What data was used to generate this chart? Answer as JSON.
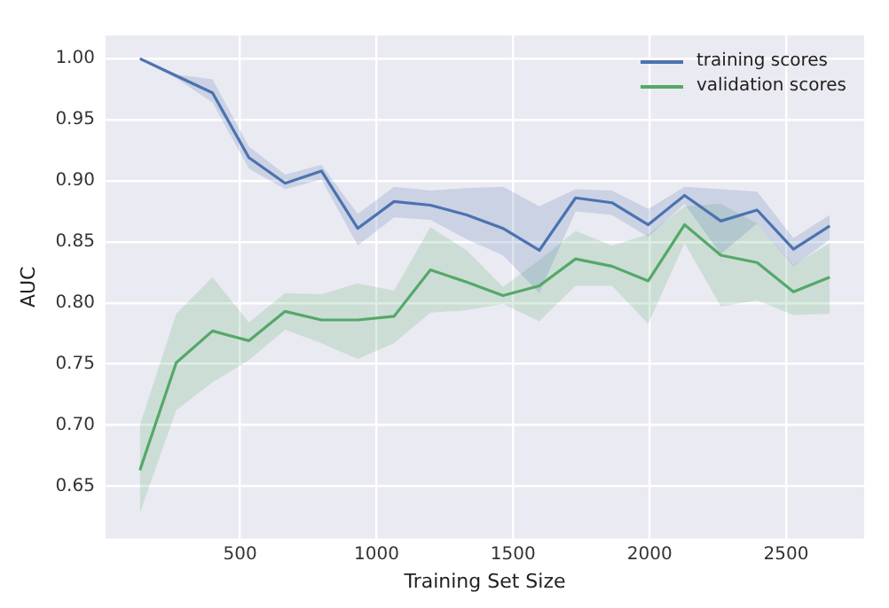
{
  "chart_data": {
    "type": "line",
    "xlabel": "Training Set Size",
    "ylabel": "AUC",
    "x": [
      133,
      266,
      399,
      532,
      665,
      798,
      931,
      1064,
      1197,
      1330,
      1463,
      1596,
      1729,
      1862,
      1995,
      2128,
      2261,
      2394,
      2527,
      2660
    ],
    "series": [
      {
        "name": "training scores",
        "color": "#4c72b0",
        "values": [
          1.0,
          0.986,
          0.972,
          0.919,
          0.898,
          0.908,
          0.861,
          0.883,
          0.88,
          0.872,
          0.861,
          0.843,
          0.886,
          0.882,
          0.864,
          0.888,
          0.867,
          0.876,
          0.844,
          0.863
        ],
        "upper": [
          1.0,
          0.987,
          0.983,
          0.928,
          0.905,
          0.913,
          0.873,
          0.895,
          0.892,
          0.894,
          0.895,
          0.879,
          0.893,
          0.892,
          0.877,
          0.895,
          0.893,
          0.891,
          0.853,
          0.872
        ],
        "lower": [
          0.999,
          0.984,
          0.964,
          0.91,
          0.893,
          0.901,
          0.847,
          0.87,
          0.868,
          0.852,
          0.839,
          0.808,
          0.875,
          0.872,
          0.854,
          0.881,
          0.84,
          0.865,
          0.83,
          0.852
        ]
      },
      {
        "name": "validation scores",
        "color": "#55a868",
        "values": [
          0.663,
          0.751,
          0.777,
          0.769,
          0.793,
          0.786,
          0.786,
          0.789,
          0.827,
          0.817,
          0.806,
          0.814,
          0.836,
          0.83,
          0.818,
          0.864,
          0.839,
          0.833,
          0.809,
          0.821
        ],
        "upper": [
          0.7,
          0.791,
          0.821,
          0.784,
          0.808,
          0.807,
          0.816,
          0.81,
          0.862,
          0.843,
          0.813,
          0.835,
          0.859,
          0.847,
          0.856,
          0.879,
          0.881,
          0.865,
          0.831,
          0.849
        ],
        "lower": [
          0.628,
          0.712,
          0.735,
          0.753,
          0.778,
          0.767,
          0.754,
          0.767,
          0.792,
          0.794,
          0.799,
          0.785,
          0.814,
          0.814,
          0.783,
          0.849,
          0.797,
          0.802,
          0.79,
          0.791
        ]
      }
    ],
    "xlim": [
      7,
      2786
    ],
    "xticks": [
      500,
      1000,
      1500,
      2000,
      2500
    ],
    "ylim": [
      0.607,
      1.019
    ],
    "yticks": [
      0.65,
      {
        "value": 0.7,
        "label": "0.70"
      },
      0.75,
      {
        "value": 0.8,
        "label": "0.80"
      },
      0.85,
      {
        "value": 0.9,
        "label": "0.90"
      },
      0.95,
      {
        "value": 1.0,
        "label": "1.00"
      }
    ],
    "grid": true,
    "legend": "top right",
    "marker": "none",
    "line_style": "solid"
  }
}
